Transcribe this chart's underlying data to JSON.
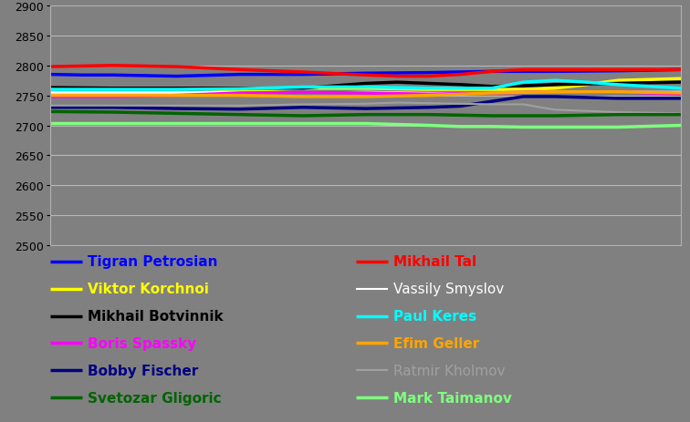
{
  "ylim": [
    2500,
    2900
  ],
  "yticks": [
    2500,
    2550,
    2600,
    2650,
    2700,
    2750,
    2800,
    2850,
    2900
  ],
  "bg_color": "#808080",
  "players": [
    {
      "name": "Tigran Petrosian",
      "color": "#0000FF",
      "bold": true,
      "points": [
        [
          0,
          2785
        ],
        [
          0.05,
          2784
        ],
        [
          0.1,
          2784
        ],
        [
          0.2,
          2782
        ],
        [
          0.3,
          2785
        ],
        [
          0.4,
          2785
        ],
        [
          0.5,
          2787
        ],
        [
          0.6,
          2788
        ],
        [
          0.7,
          2790
        ],
        [
          0.8,
          2790
        ],
        [
          0.9,
          2791
        ],
        [
          1.0,
          2793
        ]
      ]
    },
    {
      "name": "Mikhail Tal",
      "color": "#FF0000",
      "bold": true,
      "points": [
        [
          0,
          2798
        ],
        [
          0.1,
          2800
        ],
        [
          0.2,
          2798
        ],
        [
          0.3,
          2793
        ],
        [
          0.4,
          2789
        ],
        [
          0.5,
          2784
        ],
        [
          0.55,
          2782
        ],
        [
          0.6,
          2782
        ],
        [
          0.65,
          2785
        ],
        [
          0.7,
          2790
        ],
        [
          0.75,
          2793
        ],
        [
          0.8,
          2793
        ],
        [
          0.9,
          2793
        ],
        [
          1.0,
          2793
        ]
      ]
    },
    {
      "name": "Viktor Korchnoi",
      "color": "#FFFF00",
      "bold": true,
      "points": [
        [
          0,
          2752
        ],
        [
          0.1,
          2752
        ],
        [
          0.2,
          2753
        ],
        [
          0.3,
          2757
        ],
        [
          0.4,
          2762
        ],
        [
          0.5,
          2762
        ],
        [
          0.6,
          2760
        ],
        [
          0.7,
          2760
        ],
        [
          0.75,
          2760
        ],
        [
          0.8,
          2762
        ],
        [
          0.85,
          2768
        ],
        [
          0.9,
          2775
        ],
        [
          1.0,
          2778
        ]
      ]
    },
    {
      "name": "Vassily Smyslov",
      "color": "#FFFFFF",
      "bold": false,
      "points": [
        [
          0,
          2755
        ],
        [
          0.1,
          2755
        ],
        [
          0.2,
          2755
        ],
        [
          0.3,
          2755
        ],
        [
          0.4,
          2754
        ],
        [
          0.5,
          2756
        ],
        [
          0.6,
          2754
        ],
        [
          0.7,
          2754
        ],
        [
          0.8,
          2755
        ],
        [
          0.9,
          2756
        ],
        [
          1.0,
          2756
        ]
      ]
    },
    {
      "name": "Mikhail Botvinnik",
      "color": "#000000",
      "bold": true,
      "points": [
        [
          0,
          2763
        ],
        [
          0.1,
          2762
        ],
        [
          0.2,
          2762
        ],
        [
          0.3,
          2762
        ],
        [
          0.4,
          2762
        ],
        [
          0.45,
          2766
        ],
        [
          0.5,
          2770
        ],
        [
          0.55,
          2772
        ],
        [
          0.6,
          2770
        ],
        [
          0.65,
          2768
        ],
        [
          0.7,
          2765
        ],
        [
          0.75,
          2766
        ],
        [
          0.8,
          2768
        ],
        [
          0.9,
          2770
        ],
        [
          1.0,
          2772
        ]
      ]
    },
    {
      "name": "Paul Keres",
      "color": "#00FFFF",
      "bold": true,
      "points": [
        [
          0,
          2760
        ],
        [
          0.1,
          2760
        ],
        [
          0.2,
          2760
        ],
        [
          0.3,
          2761
        ],
        [
          0.4,
          2764
        ],
        [
          0.5,
          2764
        ],
        [
          0.6,
          2762
        ],
        [
          0.7,
          2762
        ],
        [
          0.75,
          2772
        ],
        [
          0.8,
          2775
        ],
        [
          0.85,
          2772
        ],
        [
          0.9,
          2768
        ],
        [
          1.0,
          2762
        ]
      ]
    },
    {
      "name": "Boris Spassky",
      "color": "#FF00FF",
      "bold": true,
      "points": [
        [
          0,
          2748
        ],
        [
          0.1,
          2748
        ],
        [
          0.2,
          2750
        ],
        [
          0.3,
          2754
        ],
        [
          0.4,
          2755
        ],
        [
          0.5,
          2754
        ],
        [
          0.6,
          2752
        ],
        [
          0.7,
          2754
        ],
        [
          0.8,
          2756
        ],
        [
          0.9,
          2756
        ],
        [
          1.0,
          2752
        ]
      ]
    },
    {
      "name": "Efim Geller",
      "color": "#FFA500",
      "bold": true,
      "points": [
        [
          0,
          2750
        ],
        [
          0.1,
          2750
        ],
        [
          0.2,
          2750
        ],
        [
          0.3,
          2750
        ],
        [
          0.4,
          2748
        ],
        [
          0.5,
          2748
        ],
        [
          0.6,
          2750
        ],
        [
          0.7,
          2754
        ],
        [
          0.8,
          2756
        ],
        [
          0.9,
          2756
        ],
        [
          1.0,
          2754
        ]
      ]
    },
    {
      "name": "Bobby Fischer",
      "color": "#000080",
      "bold": true,
      "points": [
        [
          0,
          2730
        ],
        [
          0.1,
          2730
        ],
        [
          0.2,
          2728
        ],
        [
          0.3,
          2727
        ],
        [
          0.4,
          2730
        ],
        [
          0.5,
          2728
        ],
        [
          0.6,
          2730
        ],
        [
          0.65,
          2732
        ],
        [
          0.7,
          2740
        ],
        [
          0.75,
          2748
        ],
        [
          0.8,
          2748
        ],
        [
          0.9,
          2745
        ],
        [
          1.0,
          2745
        ]
      ]
    },
    {
      "name": "Ratmir Kholmov",
      "color": "#A0A0A0",
      "bold": false,
      "points": [
        [
          0,
          2733
        ],
        [
          0.1,
          2733
        ],
        [
          0.2,
          2733
        ],
        [
          0.3,
          2733
        ],
        [
          0.4,
          2735
        ],
        [
          0.5,
          2736
        ],
        [
          0.55,
          2738
        ],
        [
          0.6,
          2737
        ],
        [
          0.65,
          2736
        ],
        [
          0.7,
          2735
        ],
        [
          0.75,
          2735
        ],
        [
          0.8,
          2726
        ],
        [
          0.9,
          2722
        ],
        [
          1.0,
          2720
        ]
      ]
    },
    {
      "name": "Svetozar Gligoric",
      "color": "#006400",
      "bold": true,
      "points": [
        [
          0,
          2723
        ],
        [
          0.1,
          2722
        ],
        [
          0.2,
          2720
        ],
        [
          0.3,
          2718
        ],
        [
          0.4,
          2716
        ],
        [
          0.5,
          2718
        ],
        [
          0.6,
          2718
        ],
        [
          0.7,
          2716
        ],
        [
          0.8,
          2716
        ],
        [
          0.9,
          2718
        ],
        [
          1.0,
          2718
        ]
      ]
    },
    {
      "name": "Mark Taimanov",
      "color": "#7FFF7F",
      "bold": true,
      "points": [
        [
          0,
          2703
        ],
        [
          0.1,
          2703
        ],
        [
          0.2,
          2703
        ],
        [
          0.3,
          2703
        ],
        [
          0.4,
          2703
        ],
        [
          0.5,
          2703
        ],
        [
          0.6,
          2700
        ],
        [
          0.65,
          2698
        ],
        [
          0.7,
          2698
        ],
        [
          0.75,
          2697
        ],
        [
          0.8,
          2697
        ],
        [
          0.85,
          2697
        ],
        [
          0.9,
          2697
        ],
        [
          1.0,
          2700
        ]
      ]
    }
  ],
  "legend_left": [
    {
      "name": "Tigran Petrosian",
      "color": "#0000FF",
      "bold": true
    },
    {
      "name": "Viktor Korchnoi",
      "color": "#FFFF00",
      "bold": true
    },
    {
      "name": "Mikhail Botvinnik",
      "color": "#000000",
      "bold": true
    },
    {
      "name": "Boris Spassky",
      "color": "#FF00FF",
      "bold": true
    },
    {
      "name": "Bobby Fischer",
      "color": "#000080",
      "bold": true
    },
    {
      "name": "Svetozar Gligoric",
      "color": "#006400",
      "bold": true
    }
  ],
  "legend_right": [
    {
      "name": "Mikhail Tal",
      "color": "#FF0000",
      "bold": true
    },
    {
      "name": "Vassily Smyslov",
      "color": "#FFFFFF",
      "bold": false
    },
    {
      "name": "Paul Keres",
      "color": "#00FFFF",
      "bold": true
    },
    {
      "name": "Efim Geller",
      "color": "#FFA500",
      "bold": true
    },
    {
      "name": "Ratmir Kholmov",
      "color": "#A0A0A0",
      "bold": false
    },
    {
      "name": "Mark Taimanov",
      "color": "#7FFF7F",
      "bold": true
    }
  ]
}
